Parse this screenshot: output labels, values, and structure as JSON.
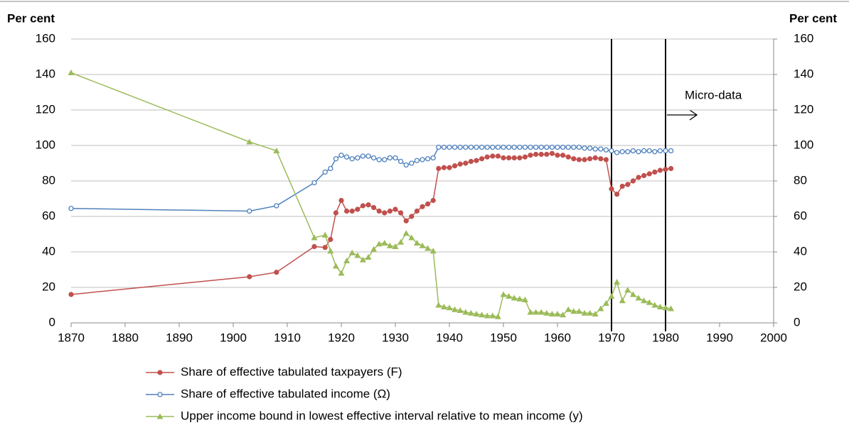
{
  "chart_data": {
    "type": "line",
    "ylabel": "Per cent",
    "y2label": "Per cent",
    "annotation": "Micro-data",
    "x": [
      1870,
      1903,
      1908,
      1915,
      1917,
      1918,
      1919,
      1920,
      1921,
      1922,
      1923,
      1924,
      1925,
      1926,
      1927,
      1928,
      1929,
      1930,
      1931,
      1932,
      1933,
      1934,
      1935,
      1936,
      1937,
      1938,
      1939,
      1940,
      1941,
      1942,
      1943,
      1944,
      1945,
      1946,
      1947,
      1948,
      1949,
      1950,
      1951,
      1952,
      1953,
      1954,
      1955,
      1956,
      1957,
      1958,
      1959,
      1960,
      1961,
      1962,
      1963,
      1964,
      1965,
      1966,
      1967,
      1968,
      1969,
      1970,
      1971,
      1972,
      1973,
      1974,
      1975,
      1976,
      1977,
      1978,
      1979,
      1980,
      1981
    ],
    "series": [
      {
        "name": "Share of effective tabulated taxpayers (F)",
        "color": "#c0504d",
        "marker": "circle",
        "values": [
          16,
          26,
          28.5,
          43,
          42.5,
          47,
          62,
          69,
          63,
          63,
          64,
          66,
          66.5,
          65,
          63,
          62,
          63,
          64,
          62,
          57.5,
          60,
          63,
          65.5,
          67,
          69,
          87,
          87.5,
          87.5,
          88.5,
          89.5,
          90,
          91,
          91.5,
          92.5,
          93.5,
          94,
          94,
          93,
          93,
          93,
          93,
          93.5,
          94.5,
          95,
          95,
          95,
          95.5,
          94.5,
          94.5,
          93.5,
          92.5,
          92,
          92,
          92.5,
          93,
          92.5,
          92,
          75.5,
          72.5,
          77,
          78,
          80,
          82,
          83,
          84,
          85,
          86,
          86.5,
          87
        ]
      },
      {
        "name": "Share of effective tabulated income (Ω)",
        "color": "#4f81bd",
        "marker": "open-circle",
        "values": [
          64.5,
          63,
          66,
          79,
          85,
          87,
          92.5,
          94.5,
          93.5,
          92.5,
          93,
          94,
          94,
          93,
          92,
          92,
          93,
          93,
          91,
          89,
          90,
          91.5,
          92,
          92.5,
          93,
          99,
          99,
          99,
          99,
          99,
          99,
          99,
          99,
          99,
          99,
          99,
          99,
          99,
          99,
          99,
          99,
          99,
          99,
          99,
          99,
          99,
          99,
          99,
          99,
          99,
          99,
          99,
          98.5,
          98.5,
          98,
          98,
          97.5,
          97,
          96,
          96.5,
          96.5,
          97,
          96.5,
          97,
          97,
          96.5,
          97,
          97,
          97
        ]
      },
      {
        "name": "Upper income bound in lowest effective interval relative to mean income (y)",
        "color": "#9bbb59",
        "marker": "triangle",
        "values": [
          141,
          102,
          97,
          48,
          49.5,
          40.5,
          32,
          28,
          35,
          39.5,
          38,
          35.5,
          37,
          41.5,
          44.5,
          45,
          43.5,
          43,
          45.5,
          50.5,
          48,
          45,
          43.5,
          42,
          40.5,
          10,
          9,
          8.5,
          7.5,
          7,
          6,
          5.5,
          5,
          4.5,
          4,
          4,
          3.5,
          16,
          15,
          14,
          13.5,
          13,
          6,
          6,
          6,
          5.5,
          5,
          5,
          4.5,
          7.5,
          6.5,
          6.5,
          5.5,
          5.5,
          5,
          8,
          11,
          15,
          23,
          12.5,
          18.5,
          16,
          14,
          12.5,
          11.5,
          10,
          9,
          8.5,
          8
        ]
      }
    ],
    "xlim": [
      1870,
      2000
    ],
    "xticks": [
      1870,
      1880,
      1890,
      1900,
      1910,
      1920,
      1930,
      1940,
      1950,
      1960,
      1970,
      1980,
      1990,
      2000
    ],
    "ylim": [
      0,
      160
    ],
    "yticks": [
      0,
      20,
      40,
      60,
      80,
      100,
      120,
      140,
      160
    ],
    "y2lim": [
      0,
      160
    ],
    "y2ticks": [
      0,
      20,
      40,
      60,
      80,
      100,
      120,
      140,
      160
    ],
    "vlines": [
      1970,
      1980
    ],
    "grid": true
  }
}
